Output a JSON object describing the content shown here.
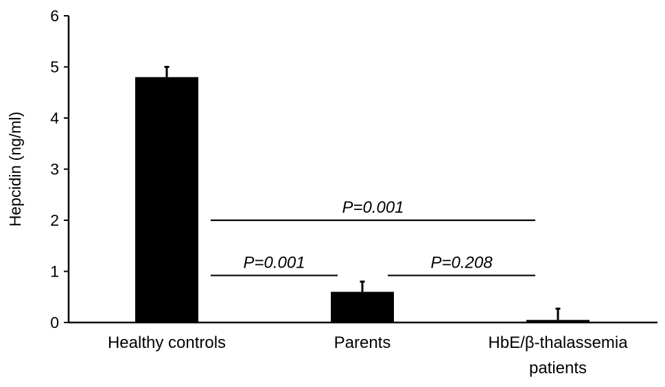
{
  "chart_data": {
    "type": "bar",
    "title": "",
    "xlabel": "",
    "ylabel": "Hepcidin (ng/ml)",
    "ylim": [
      0,
      6
    ],
    "yticks": [
      "0",
      "1",
      "2",
      "3",
      "4",
      "5",
      "6"
    ],
    "categories": [
      [
        "Healthy controls"
      ],
      [
        "Parents"
      ],
      [
        "HbE/β-thalassemia",
        "patients"
      ]
    ],
    "values": [
      4.8,
      0.6,
      0.05
    ],
    "errors": [
      0.2,
      0.2,
      0.22
    ],
    "bar_color": "#000000",
    "grid": false,
    "legend": "none",
    "comparisons": [
      {
        "from": 0,
        "to": 2,
        "label": "P=0.001",
        "y": 2.0
      },
      {
        "from": 0,
        "to": 1,
        "label": "P=0.001",
        "y": 0.92
      },
      {
        "from": 1,
        "to": 2,
        "label": "P=0.208",
        "y": 0.92
      }
    ]
  }
}
